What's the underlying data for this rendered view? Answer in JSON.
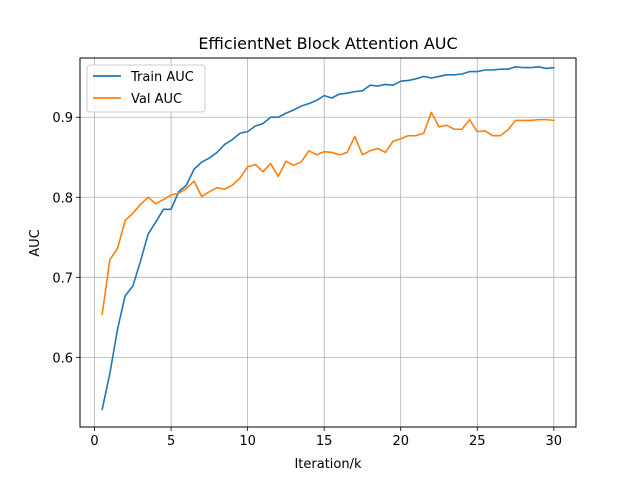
{
  "chart_data": {
    "type": "line",
    "title": "EfficientNet Block Attention AUC",
    "xlabel": "Iteration/k",
    "ylabel": "AUC",
    "xlim": [
      -0.95,
      31.45
    ],
    "ylim": [
      0.513,
      0.974
    ],
    "xticks": [
      0,
      5,
      10,
      15,
      20,
      25,
      30
    ],
    "xtick_labels": [
      "0",
      "5",
      "10",
      "15",
      "20",
      "25",
      "30"
    ],
    "yticks": [
      0.6,
      0.7,
      0.8,
      0.9
    ],
    "ytick_labels": [
      "0.6",
      "0.7",
      "0.8",
      "0.9"
    ],
    "grid": true,
    "legend_position": "top-left",
    "x": [
      0.5,
      1.0,
      1.5,
      2.0,
      2.5,
      3.0,
      3.5,
      4.0,
      4.5,
      5.0,
      5.5,
      6.0,
      6.5,
      7.0,
      7.5,
      8.0,
      8.5,
      9.0,
      9.5,
      10.0,
      10.5,
      11.0,
      11.5,
      12.0,
      12.5,
      13.0,
      13.5,
      14.0,
      14.5,
      15.0,
      15.5,
      16.0,
      16.5,
      17.0,
      17.5,
      18.0,
      18.5,
      19.0,
      19.5,
      20.0,
      20.5,
      21.0,
      21.5,
      22.0,
      22.5,
      23.0,
      23.5,
      24.0,
      24.5,
      25.0,
      25.5,
      26.0,
      26.5,
      27.0,
      27.5,
      28.0,
      28.5,
      29.0,
      29.5,
      30.0
    ],
    "series": [
      {
        "name": "Train AUC",
        "color": "#1f77b4",
        "values": [
          0.535,
          0.58,
          0.635,
          0.677,
          0.689,
          0.72,
          0.754,
          0.769,
          0.785,
          0.785,
          0.807,
          0.815,
          0.835,
          0.844,
          0.849,
          0.856,
          0.866,
          0.872,
          0.88,
          0.882,
          0.889,
          0.892,
          0.9,
          0.9,
          0.905,
          0.909,
          0.914,
          0.917,
          0.921,
          0.927,
          0.924,
          0.929,
          0.93,
          0.932,
          0.933,
          0.94,
          0.939,
          0.941,
          0.94,
          0.945,
          0.946,
          0.948,
          0.951,
          0.949,
          0.951,
          0.953,
          0.953,
          0.954,
          0.957,
          0.957,
          0.959,
          0.959,
          0.96,
          0.96,
          0.963,
          0.962,
          0.962,
          0.963,
          0.961,
          0.962
        ]
      },
      {
        "name": "Val AUC",
        "color": "#ff7f0e",
        "values": [
          0.654,
          0.722,
          0.736,
          0.771,
          0.78,
          0.791,
          0.8,
          0.792,
          0.797,
          0.803,
          0.805,
          0.811,
          0.82,
          0.801,
          0.807,
          0.812,
          0.81,
          0.815,
          0.824,
          0.838,
          0.841,
          0.832,
          0.842,
          0.826,
          0.845,
          0.84,
          0.844,
          0.858,
          0.853,
          0.857,
          0.856,
          0.853,
          0.856,
          0.876,
          0.853,
          0.858,
          0.861,
          0.856,
          0.87,
          0.873,
          0.877,
          0.877,
          0.88,
          0.906,
          0.888,
          0.89,
          0.885,
          0.885,
          0.897,
          0.882,
          0.883,
          0.877,
          0.877,
          0.884,
          0.896,
          0.896,
          0.896,
          0.897,
          0.897,
          0.896
        ]
      }
    ]
  }
}
